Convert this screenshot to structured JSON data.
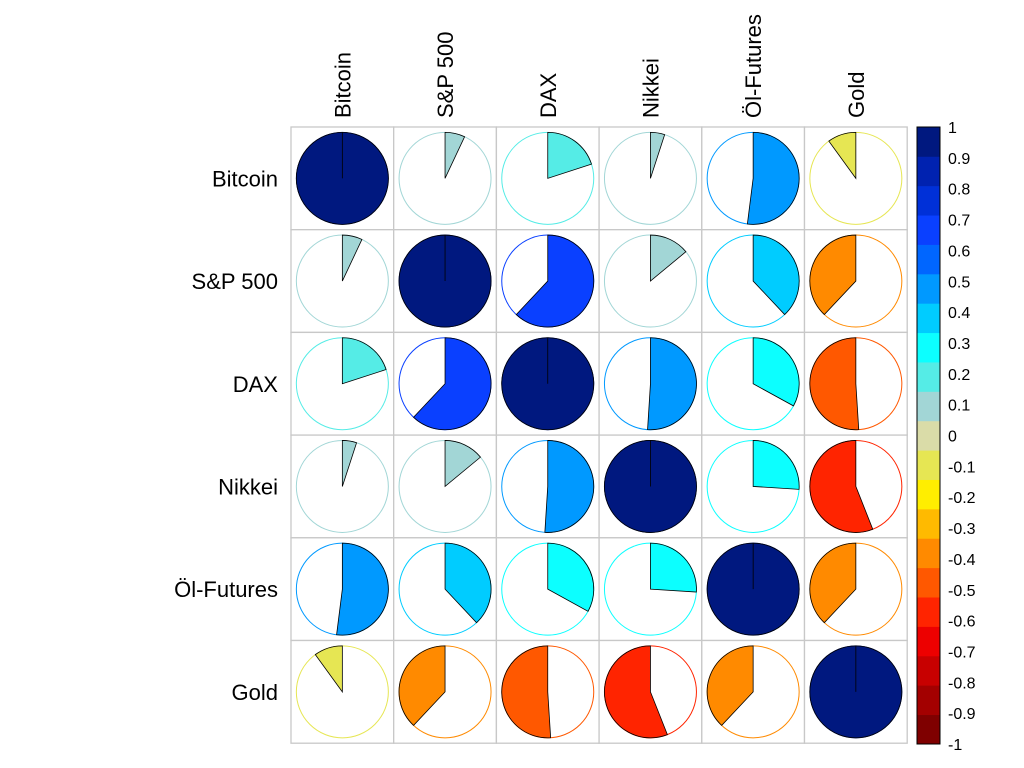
{
  "chart_data": {
    "type": "heatmap",
    "method": "pie",
    "variables": [
      "Bitcoin",
      "S&P 500",
      "DAX",
      "Nikkei",
      "Öl-Futures",
      "Gold"
    ],
    "matrix": [
      [
        1.0,
        0.07,
        0.2,
        0.05,
        0.52,
        -0.1
      ],
      [
        0.07,
        1.0,
        0.62,
        0.14,
        0.38,
        -0.38
      ],
      [
        0.2,
        0.62,
        1.0,
        0.51,
        0.33,
        -0.51
      ],
      [
        0.05,
        0.14,
        0.51,
        1.0,
        0.26,
        -0.56
      ],
      [
        0.52,
        0.38,
        0.33,
        0.26,
        1.0,
        -0.38
      ],
      [
        -0.1,
        -0.38,
        -0.51,
        -0.56,
        -0.38,
        1.0
      ]
    ],
    "colorbar": {
      "range": [
        -1,
        1
      ],
      "ticks": [
        "1",
        "0.9",
        "0.8",
        "0.7",
        "0.6",
        "0.5",
        "0.4",
        "0.3",
        "0.2",
        "0.1",
        "0",
        "-0.1",
        "-0.2",
        "-0.3",
        "-0.4",
        "-0.5",
        "-0.6",
        "-0.7",
        "-0.8",
        "-0.9",
        "-1"
      ],
      "colors": [
        "#7F0000",
        "#A30000",
        "#C80000",
        "#ED0000",
        "#FF2400",
        "#FF5800",
        "#FF8A00",
        "#FFBA00",
        "#FFEE00",
        "#E6E653",
        "#DADCA8",
        "#A2D6D6",
        "#55ECE6",
        "#0CFFFF",
        "#00CCFF",
        "#0099FF",
        "#0066FF",
        "#0A40FF",
        "#0030D8",
        "#0022B0",
        "#00187F"
      ]
    }
  }
}
